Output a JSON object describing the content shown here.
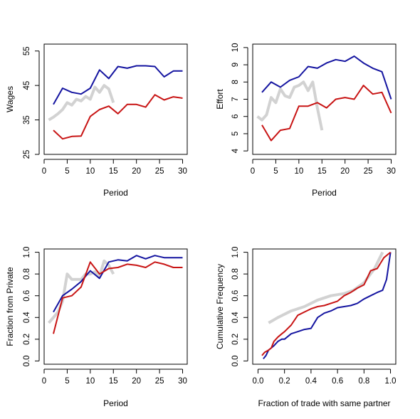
{
  "colors": {
    "blue": "#1414a0",
    "red": "#c81414",
    "gray": "#d2d2d2"
  },
  "chart_data": [
    {
      "id": "wages",
      "type": "line",
      "xlabel": "Period",
      "ylabel": "Wages",
      "xlim": [
        0,
        31
      ],
      "ylim": [
        25,
        57
      ],
      "xticks": [
        0,
        5,
        10,
        15,
        20,
        25,
        30
      ],
      "yticks": [
        25,
        35,
        45,
        55
      ],
      "grid": false,
      "series": [
        {
          "color_key": "gray",
          "x": [
            1,
            2,
            3,
            4,
            5,
            6,
            7,
            8,
            9,
            10,
            11,
            12,
            13,
            14,
            15
          ],
          "y": [
            35,
            35.8,
            36.8,
            38,
            40,
            39.3,
            41,
            40.5,
            41.8,
            41,
            44.5,
            43,
            45,
            44,
            40
          ]
        },
        {
          "color_key": "blue",
          "x": [
            2,
            4,
            6,
            8,
            10,
            12,
            14,
            16,
            18,
            20,
            22,
            24,
            26,
            28,
            30
          ],
          "y": [
            39.5,
            44.2,
            43,
            42.5,
            44.2,
            49.5,
            47,
            50.5,
            50,
            50.7,
            50.7,
            50.5,
            47.5,
            49.2,
            49.2
          ]
        },
        {
          "color_key": "red",
          "x": [
            2,
            4,
            6,
            8,
            10,
            12,
            14,
            16,
            18,
            20,
            22,
            24,
            26,
            28,
            30
          ],
          "y": [
            32,
            29.5,
            30.2,
            30.3,
            36,
            38,
            39,
            36.8,
            39.5,
            39.5,
            38.7,
            42.3,
            40.8,
            41.7,
            41.3
          ]
        }
      ]
    },
    {
      "id": "effort",
      "type": "line",
      "xlabel": "Period",
      "ylabel": "Effort",
      "xlim": [
        0,
        31
      ],
      "ylim": [
        3.8,
        10.2
      ],
      "xticks": [
        0,
        5,
        10,
        15,
        20,
        25,
        30
      ],
      "yticks": [
        4,
        5,
        6,
        7,
        8,
        9,
        10
      ],
      "grid": false,
      "series": [
        {
          "color_key": "gray",
          "x": [
            1,
            2,
            3,
            4,
            5,
            6,
            7,
            8,
            9,
            10,
            11,
            12,
            13,
            14,
            15
          ],
          "y": [
            6,
            5.8,
            6.1,
            7.1,
            6.8,
            7.6,
            7.2,
            7.1,
            7.7,
            7.8,
            8,
            7.5,
            8,
            6.5,
            5.2
          ]
        },
        {
          "color_key": "blue",
          "x": [
            2,
            4,
            6,
            8,
            10,
            12,
            14,
            16,
            18,
            20,
            22,
            24,
            26,
            28,
            30
          ],
          "y": [
            7.4,
            8,
            7.7,
            8.1,
            8.3,
            8.9,
            8.8,
            9.1,
            9.3,
            9.2,
            9.5,
            9.1,
            8.8,
            8.6,
            7
          ]
        },
        {
          "color_key": "red",
          "x": [
            2,
            4,
            6,
            8,
            10,
            12,
            14,
            16,
            18,
            20,
            22,
            24,
            26,
            28,
            30
          ],
          "y": [
            5.5,
            4.6,
            5.2,
            5.3,
            6.6,
            6.6,
            6.8,
            6.5,
            7,
            7.1,
            7,
            7.8,
            7.3,
            7.4,
            6.2
          ]
        }
      ]
    },
    {
      "id": "private",
      "type": "line",
      "xlabel": "Period",
      "ylabel": "Fraction from Private",
      "xlim": [
        0,
        31
      ],
      "ylim": [
        -0.03,
        1.03
      ],
      "xticks": [
        0,
        5,
        10,
        15,
        20,
        25,
        30
      ],
      "yticks": [
        0.0,
        0.2,
        0.4,
        0.6,
        0.8,
        1.0
      ],
      "ytick_labels": [
        "0.0",
        "0.2",
        "0.4",
        "0.6",
        "0.8",
        "1.0"
      ],
      "grid": false,
      "series": [
        {
          "color_key": "gray",
          "x": [
            1,
            2,
            3,
            4,
            5,
            6,
            7,
            8,
            9,
            10,
            11,
            12,
            13,
            14,
            15
          ],
          "y": [
            0.35,
            0.4,
            0.45,
            0.55,
            0.8,
            0.75,
            0.75,
            0.75,
            0.8,
            0.8,
            0.82,
            0.78,
            0.92,
            0.88,
            0.8
          ]
        },
        {
          "color_key": "blue",
          "x": [
            2,
            4,
            6,
            8,
            10,
            12,
            14,
            16,
            18,
            20,
            22,
            24,
            26,
            28,
            30
          ],
          "y": [
            0.45,
            0.6,
            0.66,
            0.73,
            0.83,
            0.76,
            0.91,
            0.93,
            0.92,
            0.97,
            0.94,
            0.97,
            0.95,
            0.95,
            0.95
          ]
        },
        {
          "color_key": "red",
          "x": [
            2,
            4,
            6,
            8,
            10,
            12,
            14,
            16,
            18,
            20,
            22,
            24,
            26,
            28,
            30
          ],
          "y": [
            0.25,
            0.58,
            0.6,
            0.68,
            0.91,
            0.8,
            0.85,
            0.86,
            0.89,
            0.88,
            0.86,
            0.91,
            0.89,
            0.86,
            0.86
          ]
        }
      ]
    },
    {
      "id": "cumulative",
      "type": "line",
      "xlabel": "Fraction of trade with same partner",
      "ylabel": "Cumulative Frequency",
      "xlim": [
        -0.04,
        1.04
      ],
      "ylim": [
        -0.03,
        1.03
      ],
      "xticks": [
        0.0,
        0.2,
        0.4,
        0.6,
        0.8,
        1.0
      ],
      "xtick_labels": [
        "0.0",
        "0.2",
        "0.4",
        "0.6",
        "0.8",
        "1.0"
      ],
      "yticks": [
        0.0,
        0.2,
        0.4,
        0.6,
        0.8,
        1.0
      ],
      "ytick_labels": [
        "0.0",
        "0.2",
        "0.4",
        "0.6",
        "0.8",
        "1.0"
      ],
      "grid": false,
      "series": [
        {
          "color_key": "gray",
          "x": [
            0.08,
            0.15,
            0.25,
            0.35,
            0.45,
            0.55,
            0.65,
            0.72,
            0.8,
            0.88,
            0.94
          ],
          "y": [
            0.35,
            0.4,
            0.46,
            0.5,
            0.56,
            0.6,
            0.62,
            0.65,
            0.72,
            0.85,
            1.0
          ]
        },
        {
          "color_key": "blue",
          "x": [
            0.04,
            0.06,
            0.08,
            0.1,
            0.12,
            0.15,
            0.18,
            0.2,
            0.25,
            0.3,
            0.35,
            0.4,
            0.45,
            0.5,
            0.55,
            0.6,
            0.7,
            0.75,
            0.8,
            0.85,
            0.9,
            0.94,
            0.97,
            1.0
          ],
          "y": [
            0.02,
            0.05,
            0.1,
            0.12,
            0.14,
            0.18,
            0.2,
            0.2,
            0.25,
            0.27,
            0.29,
            0.3,
            0.4,
            0.44,
            0.46,
            0.49,
            0.51,
            0.53,
            0.57,
            0.6,
            0.63,
            0.65,
            0.75,
            1.0
          ]
        },
        {
          "color_key": "red",
          "x": [
            0.03,
            0.05,
            0.08,
            0.1,
            0.12,
            0.15,
            0.18,
            0.2,
            0.25,
            0.3,
            0.35,
            0.4,
            0.45,
            0.5,
            0.55,
            0.6,
            0.65,
            0.7,
            0.75,
            0.8,
            0.85,
            0.9,
            0.95,
            1.0
          ],
          "y": [
            0.05,
            0.08,
            0.1,
            0.12,
            0.18,
            0.22,
            0.25,
            0.27,
            0.33,
            0.42,
            0.45,
            0.48,
            0.5,
            0.51,
            0.53,
            0.55,
            0.6,
            0.63,
            0.67,
            0.7,
            0.83,
            0.85,
            0.95,
            1.0
          ]
        }
      ]
    }
  ]
}
